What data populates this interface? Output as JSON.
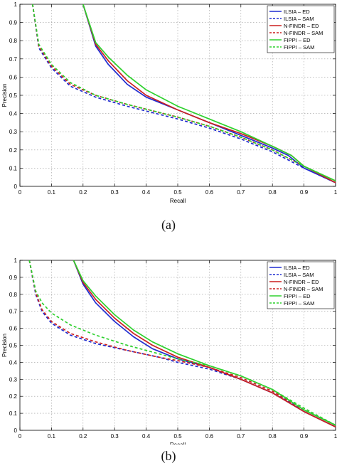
{
  "chart_data": [
    {
      "type": "line",
      "panel_label": "(a)",
      "xlabel": "Recall",
      "ylabel": "Precision",
      "xlim": [
        0,
        1
      ],
      "ylim": [
        0,
        1
      ],
      "xticks": [
        0,
        0.1,
        0.2,
        0.3,
        0.4,
        0.5,
        0.6,
        0.7,
        0.8,
        0.9,
        1
      ],
      "yticks": [
        0,
        0.1,
        0.2,
        0.3,
        0.4,
        0.5,
        0.6,
        0.7,
        0.8,
        0.9,
        1
      ],
      "xtick_labels": [
        "0",
        "0.1",
        "0.2",
        "0.3",
        "0.4",
        "0.5",
        "0.6",
        "0.7",
        "0.8",
        "0.9",
        "1"
      ],
      "ytick_labels": [
        "0",
        "0.1",
        "0.2",
        "0.3",
        "0.4",
        "0.5",
        "0.6",
        "0.7",
        "0.8",
        "0.9",
        "1"
      ],
      "grid": true,
      "legend_position": "top-right",
      "series": [
        {
          "name": "ILSIA – ED",
          "color": "#1f2bd0",
          "dash": false,
          "x": [
            0.2,
            0.24,
            0.28,
            0.34,
            0.4,
            0.5,
            0.6,
            0.7,
            0.8,
            0.85,
            0.9,
            1.0
          ],
          "y": [
            1.0,
            0.77,
            0.67,
            0.56,
            0.49,
            0.42,
            0.35,
            0.28,
            0.21,
            0.17,
            0.1,
            0.02
          ]
        },
        {
          "name": "ILSIA – SAM",
          "color": "#1f2bd0",
          "dash": true,
          "x": [
            0.04,
            0.06,
            0.1,
            0.16,
            0.24,
            0.34,
            0.5,
            0.6,
            0.7,
            0.8,
            0.9,
            1.0
          ],
          "y": [
            1.0,
            0.76,
            0.65,
            0.55,
            0.49,
            0.44,
            0.37,
            0.32,
            0.26,
            0.19,
            0.1,
            0.02
          ]
        },
        {
          "name": "N-FINDR – ED",
          "color": "#cc1f1f",
          "dash": false,
          "x": [
            0.2,
            0.24,
            0.28,
            0.34,
            0.4,
            0.5,
            0.6,
            0.7,
            0.8,
            0.86,
            0.9,
            1.0
          ],
          "y": [
            1.0,
            0.78,
            0.69,
            0.58,
            0.5,
            0.42,
            0.35,
            0.29,
            0.22,
            0.17,
            0.11,
            0.02
          ]
        },
        {
          "name": "N-FINDR – SAM",
          "color": "#cc1f1f",
          "dash": true,
          "x": [
            0.04,
            0.06,
            0.1,
            0.16,
            0.24,
            0.34,
            0.5,
            0.6,
            0.7,
            0.8,
            0.9,
            1.0
          ],
          "y": [
            1.0,
            0.77,
            0.66,
            0.56,
            0.5,
            0.45,
            0.38,
            0.33,
            0.27,
            0.2,
            0.11,
            0.03
          ]
        },
        {
          "name": "FIPPI – ED",
          "color": "#2ed12e",
          "dash": false,
          "x": [
            0.2,
            0.24,
            0.28,
            0.34,
            0.4,
            0.5,
            0.6,
            0.7,
            0.8,
            0.86,
            0.9,
            1.0
          ],
          "y": [
            1.0,
            0.79,
            0.71,
            0.61,
            0.53,
            0.44,
            0.37,
            0.3,
            0.22,
            0.17,
            0.11,
            0.03
          ]
        },
        {
          "name": "FIPPI – SAM",
          "color": "#2ed12e",
          "dash": true,
          "x": [
            0.04,
            0.06,
            0.1,
            0.16,
            0.24,
            0.34,
            0.5,
            0.6,
            0.7,
            0.8,
            0.9,
            1.0
          ],
          "y": [
            1.0,
            0.78,
            0.67,
            0.57,
            0.5,
            0.45,
            0.38,
            0.33,
            0.27,
            0.2,
            0.11,
            0.03
          ]
        }
      ]
    },
    {
      "type": "line",
      "panel_label": "(b)",
      "xlabel": "Recall",
      "ylabel": "Precision",
      "xlim": [
        0,
        1
      ],
      "ylim": [
        0,
        1
      ],
      "xticks": [
        0,
        0.1,
        0.2,
        0.3,
        0.4,
        0.5,
        0.6,
        0.7,
        0.8,
        0.9,
        1
      ],
      "yticks": [
        0,
        0.1,
        0.2,
        0.3,
        0.4,
        0.5,
        0.6,
        0.7,
        0.8,
        0.9,
        1
      ],
      "xtick_labels": [
        "0",
        "0.1",
        "0.2",
        "0.3",
        "0.4",
        "0.5",
        "0.6",
        "0.7",
        "0.8",
        "0.9",
        "1"
      ],
      "ytick_labels": [
        "0",
        "0.1",
        "0.2",
        "0.3",
        "0.4",
        "0.5",
        "0.6",
        "0.7",
        "0.8",
        "0.9",
        "1"
      ],
      "grid": true,
      "legend_position": "top-right",
      "series": [
        {
          "name": "ILSIA – ED",
          "color": "#1f2bd0",
          "dash": false,
          "x": [
            0.17,
            0.2,
            0.24,
            0.3,
            0.36,
            0.42,
            0.5,
            0.6,
            0.7,
            0.8,
            0.9,
            1.0
          ],
          "y": [
            1.0,
            0.86,
            0.75,
            0.64,
            0.55,
            0.48,
            0.42,
            0.37,
            0.3,
            0.22,
            0.11,
            0.02
          ]
        },
        {
          "name": "ILSIA – SAM",
          "color": "#1f2bd0",
          "dash": true,
          "x": [
            0.03,
            0.05,
            0.07,
            0.1,
            0.16,
            0.24,
            0.34,
            0.44,
            0.5,
            0.6,
            0.7,
            0.8,
            0.9,
            1.0
          ],
          "y": [
            1.0,
            0.8,
            0.7,
            0.63,
            0.56,
            0.51,
            0.47,
            0.43,
            0.4,
            0.36,
            0.3,
            0.22,
            0.12,
            0.03
          ]
        },
        {
          "name": "N-FINDR – ED",
          "color": "#cc1f1f",
          "dash": false,
          "x": [
            0.17,
            0.2,
            0.24,
            0.3,
            0.36,
            0.42,
            0.5,
            0.6,
            0.7,
            0.8,
            0.9,
            1.0
          ],
          "y": [
            1.0,
            0.87,
            0.77,
            0.66,
            0.57,
            0.5,
            0.43,
            0.37,
            0.3,
            0.22,
            0.11,
            0.02
          ]
        },
        {
          "name": "N-FINDR – SAM",
          "color": "#cc1f1f",
          "dash": true,
          "x": [
            0.03,
            0.05,
            0.07,
            0.1,
            0.16,
            0.24,
            0.34,
            0.44,
            0.5,
            0.6,
            0.7,
            0.8,
            0.9,
            1.0
          ],
          "y": [
            1.0,
            0.81,
            0.71,
            0.64,
            0.57,
            0.52,
            0.47,
            0.43,
            0.41,
            0.37,
            0.31,
            0.23,
            0.12,
            0.03
          ]
        },
        {
          "name": "FIPPI – ED",
          "color": "#2ed12e",
          "dash": false,
          "x": [
            0.17,
            0.2,
            0.24,
            0.3,
            0.36,
            0.42,
            0.5,
            0.6,
            0.7,
            0.8,
            0.9,
            1.0
          ],
          "y": [
            1.0,
            0.88,
            0.79,
            0.68,
            0.59,
            0.52,
            0.45,
            0.38,
            0.32,
            0.24,
            0.12,
            0.03
          ]
        },
        {
          "name": "FIPPI – SAM",
          "color": "#2ed12e",
          "dash": true,
          "x": [
            0.03,
            0.05,
            0.07,
            0.1,
            0.16,
            0.24,
            0.34,
            0.44,
            0.5,
            0.6,
            0.7,
            0.8,
            0.9,
            1.0
          ],
          "y": [
            1.0,
            0.82,
            0.75,
            0.69,
            0.62,
            0.56,
            0.5,
            0.45,
            0.42,
            0.38,
            0.32,
            0.24,
            0.13,
            0.03
          ]
        }
      ]
    }
  ]
}
